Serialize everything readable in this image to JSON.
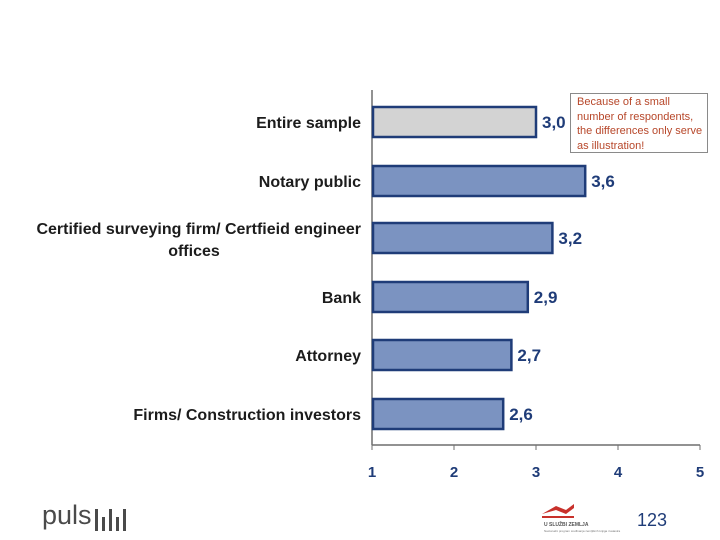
{
  "chart_data": {
    "type": "bar",
    "orientation": "horizontal",
    "title": "",
    "xlabel": "",
    "ylabel": "",
    "xlim": [
      1,
      5
    ],
    "ticks": [
      "1",
      "2",
      "3",
      "4",
      "5"
    ],
    "categories": [
      "Entire sample",
      "Notary public",
      "Certified surveying firm/ Certfieid engineer offices",
      "Bank",
      "Attorney",
      "Firms/ Construction investors"
    ],
    "values": [
      3.0,
      3.6,
      3.2,
      2.9,
      2.7,
      2.6
    ],
    "value_labels": [
      "3,0",
      "3,6",
      "3,2",
      "2,9",
      "2,7",
      "2,6"
    ],
    "grid": false,
    "colors": {
      "highlight": "#d3d3d3",
      "bar": "#7b93c1",
      "bar_border": "#1f3c78",
      "text": "#1f3c78"
    }
  },
  "note": "Because of a small number of respondents, the differences only serve as illustration!",
  "footer": {
    "logo_text": "puls",
    "sponsor_name": "U SLUŽBI ZEMLJA",
    "sponsor_sub": "Nacionalni program sređivanja zemljišnih knjiga i katastra",
    "page_number": "123"
  }
}
